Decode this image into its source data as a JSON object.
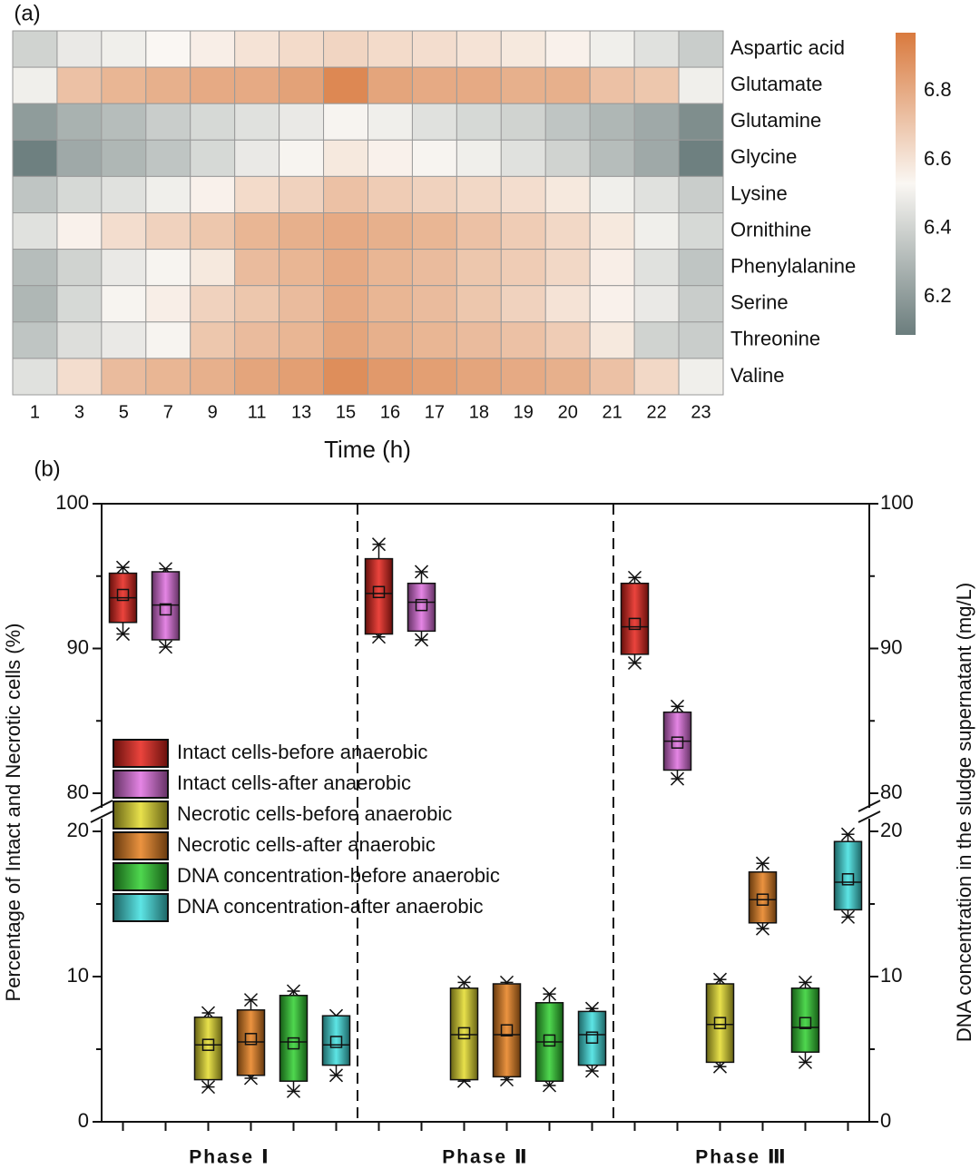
{
  "chart_data": [
    {
      "type": "heatmap",
      "label": "(a)",
      "xlabel": "Time (h)",
      "x": [
        1,
        3,
        5,
        7,
        9,
        11,
        13,
        15,
        16,
        17,
        18,
        19,
        20,
        21,
        22,
        23
      ],
      "rows": [
        "Aspartic acid",
        "Glutamate",
        "Glutamine",
        "Glycine",
        "Lysine",
        "Ornithine",
        "Phenylalanine",
        "Serine",
        "Threonine",
        "Valine"
      ],
      "values": [
        [
          6.4,
          6.48,
          6.5,
          6.53,
          6.56,
          6.6,
          6.63,
          6.65,
          6.63,
          6.62,
          6.6,
          6.58,
          6.55,
          6.5,
          6.45,
          6.38
        ],
        [
          6.5,
          6.72,
          6.76,
          6.78,
          6.8,
          6.8,
          6.83,
          6.92,
          6.82,
          6.8,
          6.8,
          6.78,
          6.78,
          6.72,
          6.7,
          6.5
        ],
        [
          6.2,
          6.28,
          6.32,
          6.38,
          6.42,
          6.45,
          6.48,
          6.52,
          6.5,
          6.45,
          6.42,
          6.4,
          6.35,
          6.3,
          6.25,
          6.15
        ],
        [
          6.1,
          6.25,
          6.3,
          6.35,
          6.42,
          6.48,
          6.52,
          6.58,
          6.55,
          6.52,
          6.5,
          6.45,
          6.4,
          6.32,
          6.25,
          6.1
        ],
        [
          6.35,
          6.42,
          6.45,
          6.5,
          6.55,
          6.63,
          6.66,
          6.72,
          6.68,
          6.66,
          6.64,
          6.62,
          6.58,
          6.5,
          6.45,
          6.38
        ],
        [
          6.45,
          6.55,
          6.62,
          6.66,
          6.7,
          6.76,
          6.78,
          6.8,
          6.78,
          6.76,
          6.72,
          6.68,
          6.64,
          6.58,
          6.5,
          6.42
        ],
        [
          6.32,
          6.4,
          6.48,
          6.52,
          6.58,
          6.74,
          6.76,
          6.8,
          6.76,
          6.74,
          6.7,
          6.68,
          6.64,
          6.56,
          6.45,
          6.35
        ],
        [
          6.3,
          6.42,
          6.52,
          6.56,
          6.66,
          6.7,
          6.74,
          6.8,
          6.76,
          6.74,
          6.7,
          6.66,
          6.6,
          6.55,
          6.48,
          6.38
        ],
        [
          6.35,
          6.44,
          6.48,
          6.52,
          6.7,
          6.74,
          6.76,
          6.82,
          6.78,
          6.76,
          6.74,
          6.72,
          6.68,
          6.58,
          6.4,
          6.38
        ],
        [
          6.45,
          6.62,
          6.74,
          6.76,
          6.78,
          6.82,
          6.84,
          6.9,
          6.86,
          6.84,
          6.82,
          6.8,
          6.78,
          6.72,
          6.64,
          6.5
        ]
      ],
      "clim": [
        6.09,
        6.97
      ],
      "colorbar_ticks": [
        6.2,
        6.4,
        6.6,
        6.8
      ],
      "colorscale": [
        "#6b7d7d",
        "#faf7f3",
        "#d97a3e"
      ]
    },
    {
      "type": "box",
      "label": "(b)",
      "ylabel": "Percentage of Intact and Necrotic cells (%)",
      "y2label": "DNA concentration in the sludge supernatant (mg/L)",
      "categories": [
        "Phase Ⅰ",
        "Phase Ⅱ",
        "Phase Ⅲ"
      ],
      "ylim": [
        0,
        100
      ],
      "ybreak": [
        20,
        80
      ],
      "yticks": [
        0,
        10,
        20,
        80,
        90,
        100
      ],
      "yminorticks": [
        5,
        15,
        85,
        95
      ],
      "y2lim": [
        0,
        100
      ],
      "y2ticks": [
        0,
        10,
        20,
        80,
        90,
        100
      ],
      "legend": "center left",
      "series": [
        {
          "name": "Intact cells-before anaerobic",
          "color": "#e8231b",
          "boxes": [
            {
              "min": 91,
              "q1": 91.8,
              "median": 93.5,
              "mean": 93.7,
              "q3": 95.2,
              "max": 95.6
            },
            {
              "min": 90.8,
              "q1": 91,
              "median": 93.8,
              "mean": 93.9,
              "q3": 96.2,
              "max": 97.2
            },
            {
              "min": 89,
              "q1": 89.6,
              "median": 91.5,
              "mean": 91.7,
              "q3": 94.5,
              "max": 94.9
            }
          ]
        },
        {
          "name": "Intact cells-after anaerobic",
          "color": "#e070e0",
          "boxes": [
            {
              "min": 90.1,
              "q1": 90.6,
              "median": 93,
              "mean": 92.7,
              "q3": 95.3,
              "max": 95.5
            },
            {
              "min": 90.6,
              "q1": 91.2,
              "median": 93.2,
              "mean": 93,
              "q3": 94.5,
              "max": 95.3
            },
            {
              "min": 81,
              "q1": 81.6,
              "median": 83.6,
              "mean": 83.5,
              "q3": 85.6,
              "max": 86
            }
          ]
        },
        {
          "name": "Necrotic cells-before anaerobic",
          "color": "#e4dc2c",
          "boxes": [
            {
              "min": 2.4,
              "q1": 2.9,
              "median": 5.3,
              "mean": 5.3,
              "q3": 7.2,
              "max": 7.5
            },
            {
              "min": 2.8,
              "q1": 2.9,
              "median": 6,
              "mean": 6.1,
              "q3": 9.2,
              "max": 9.6
            },
            {
              "min": 3.8,
              "q1": 4.1,
              "median": 6.7,
              "mean": 6.8,
              "q3": 9.5,
              "max": 9.8
            }
          ]
        },
        {
          "name": "Necrotic cells-after anaerobic",
          "color": "#e8801e",
          "boxes": [
            {
              "min": 3,
              "q1": 3.2,
              "median": 5.5,
              "mean": 5.7,
              "q3": 7.7,
              "max": 8.4
            },
            {
              "min": 2.9,
              "q1": 3.1,
              "median": 6,
              "mean": 6.3,
              "q3": 9.5,
              "max": 9.6
            },
            {
              "min": 13.3,
              "q1": 13.7,
              "median": 15.3,
              "mean": 15.3,
              "q3": 17.2,
              "max": 17.8
            }
          ]
        },
        {
          "name": "DNA concentration-before anaerobic",
          "color": "#30d030",
          "boxes": [
            {
              "min": 2.1,
              "q1": 2.8,
              "median": 5.5,
              "mean": 5.4,
              "q3": 8.7,
              "max": 9
            },
            {
              "min": 2.5,
              "q1": 2.8,
              "median": 5.5,
              "mean": 5.6,
              "q3": 8.2,
              "max": 8.8
            },
            {
              "min": 4.1,
              "q1": 4.8,
              "median": 6.5,
              "mean": 6.8,
              "q3": 9.2,
              "max": 9.6
            }
          ]
        },
        {
          "name": "DNA concentration-after anaerobic",
          "color": "#40e0e0",
          "boxes": [
            {
              "min": 3.2,
              "q1": 3.9,
              "median": 5.3,
              "mean": 5.5,
              "q3": 7.3,
              "max": 7.3
            },
            {
              "min": 3.5,
              "q1": 3.9,
              "median": 6,
              "mean": 5.8,
              "q3": 7.6,
              "max": 7.8
            },
            {
              "min": 14.1,
              "q1": 14.6,
              "median": 16.5,
              "mean": 16.7,
              "q3": 19.3,
              "max": 19.8
            }
          ]
        }
      ]
    }
  ]
}
